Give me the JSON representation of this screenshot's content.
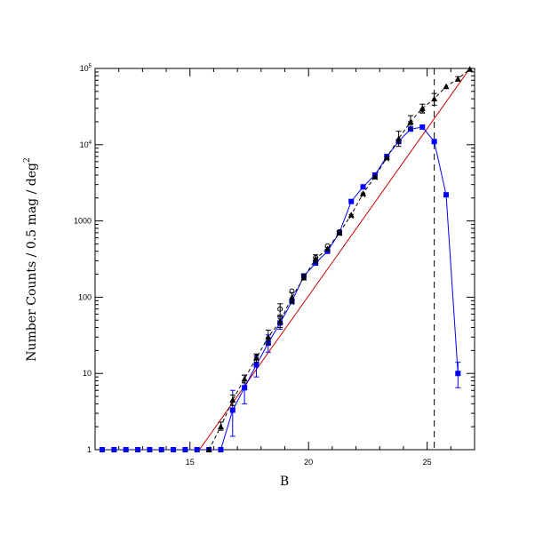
{
  "chart_data": {
    "type": "scatter",
    "xlabel": "B",
    "ylabel": "Number Counts / 0.5 mag / deg",
    "ylabel_sup": "2",
    "xlim": [
      11,
      27
    ],
    "ylim": [
      1,
      100000
    ],
    "y_scale": "log",
    "x_ticks": [
      15,
      20,
      25
    ],
    "y_ticks": [
      {
        "value": 1,
        "label": "1"
      },
      {
        "value": 10,
        "label": "10"
      },
      {
        "value": 100,
        "label": "100"
      },
      {
        "value": 1000,
        "label": "1000"
      },
      {
        "value": 10000,
        "label": "10",
        "sup": "4"
      },
      {
        "value": 100000,
        "label": "10",
        "sup": "5"
      }
    ],
    "colors": {
      "blue": "#0000ff",
      "red": "#cc0000",
      "black": "#000000"
    },
    "vertical_line": {
      "x": 25.3,
      "style": "dashed"
    },
    "red_line": {
      "x": [
        15.4,
        26.8
      ],
      "y": [
        1,
        100000
      ]
    },
    "series": [
      {
        "marker": "square",
        "color": "#0000ff",
        "line": "solid",
        "x": [
          11.3,
          11.8,
          12.3,
          12.8,
          13.3,
          13.8,
          14.3,
          14.8,
          15.3,
          15.8,
          16.3,
          16.8,
          17.3,
          17.8,
          18.3,
          18.8,
          19.3,
          19.8,
          20.3,
          20.8,
          21.3,
          21.8,
          22.3,
          22.8,
          23.3,
          23.8,
          24.3,
          24.8,
          25.3,
          25.8,
          26.3
        ],
        "y": [
          1,
          1,
          1,
          1,
          1,
          1,
          1,
          1,
          1,
          1,
          1,
          3.3,
          6.5,
          13,
          25,
          46,
          88,
          190,
          280,
          400,
          700,
          1800,
          2800,
          4000,
          7000,
          11000,
          16000,
          17000,
          11000,
          2200,
          10
        ],
        "err_low": [
          null,
          null,
          null,
          null,
          null,
          null,
          null,
          null,
          null,
          null,
          null,
          1.5,
          4,
          9,
          19,
          38,
          null,
          null,
          null,
          null,
          null,
          null,
          null,
          null,
          null,
          null,
          null,
          null,
          null,
          null,
          6.5
        ],
        "err_high": [
          null,
          null,
          null,
          null,
          null,
          null,
          null,
          null,
          null,
          null,
          null,
          6,
          9.5,
          17,
          32,
          55,
          null,
          null,
          null,
          null,
          null,
          null,
          null,
          null,
          null,
          null,
          null,
          null,
          null,
          null,
          14
        ]
      },
      {
        "marker": "triangle",
        "color": "#000000",
        "line": "dashed",
        "x": [
          15.8,
          16.3,
          16.8,
          17.3,
          17.8,
          18.3,
          18.8,
          19.3,
          19.8,
          20.3,
          20.8,
          21.3,
          21.8,
          22.3,
          22.8,
          23.3,
          23.8,
          24.3,
          24.8,
          25.3,
          25.8,
          26.3,
          26.8
        ],
        "y": [
          1,
          2,
          4.5,
          8.5,
          16,
          30,
          48,
          100,
          180,
          320,
          430,
          700,
          1200,
          2300,
          3800,
          6800,
          12000,
          20000,
          30000,
          40000,
          58000,
          73000,
          98000
        ],
        "err_low": [
          null,
          1.8,
          3.8,
          7.5,
          14,
          24,
          40,
          85,
          null,
          280,
          null,
          null,
          null,
          null,
          null,
          null,
          9500,
          16000,
          26000,
          33000,
          null,
          68000,
          null
        ],
        "err_high": [
          null,
          2.3,
          5.2,
          9.5,
          18,
          37,
          56,
          115,
          null,
          360,
          null,
          null,
          null,
          null,
          null,
          null,
          15000,
          24000,
          34000,
          47000,
          null,
          78000,
          null
        ]
      },
      {
        "marker": "cross",
        "color": "#000000",
        "line": "none",
        "x": [
          17.8,
          18.3,
          18.8,
          19.3,
          19.8,
          20.3,
          20.8,
          21.3,
          21.8,
          22.3,
          22.8,
          23.3,
          23.8,
          24.3,
          24.8
        ],
        "y": [
          17,
          28,
          50,
          85,
          190,
          300,
          430,
          680,
          1150,
          2200,
          3700,
          6500,
          11000,
          19000,
          28000
        ],
        "err_low": [],
        "err_high": []
      },
      {
        "marker": "circle",
        "color": "#000000",
        "line": "none",
        "x": [
          18.8,
          19.3,
          19.8,
          20.3,
          20.8,
          21.3
        ],
        "y": [
          70,
          120,
          190,
          330,
          470,
          720
        ],
        "err_low": [
          58,
          null,
          null,
          null,
          null,
          null
        ],
        "err_high": [
          82,
          null,
          null,
          null,
          null,
          null
        ]
      }
    ]
  }
}
